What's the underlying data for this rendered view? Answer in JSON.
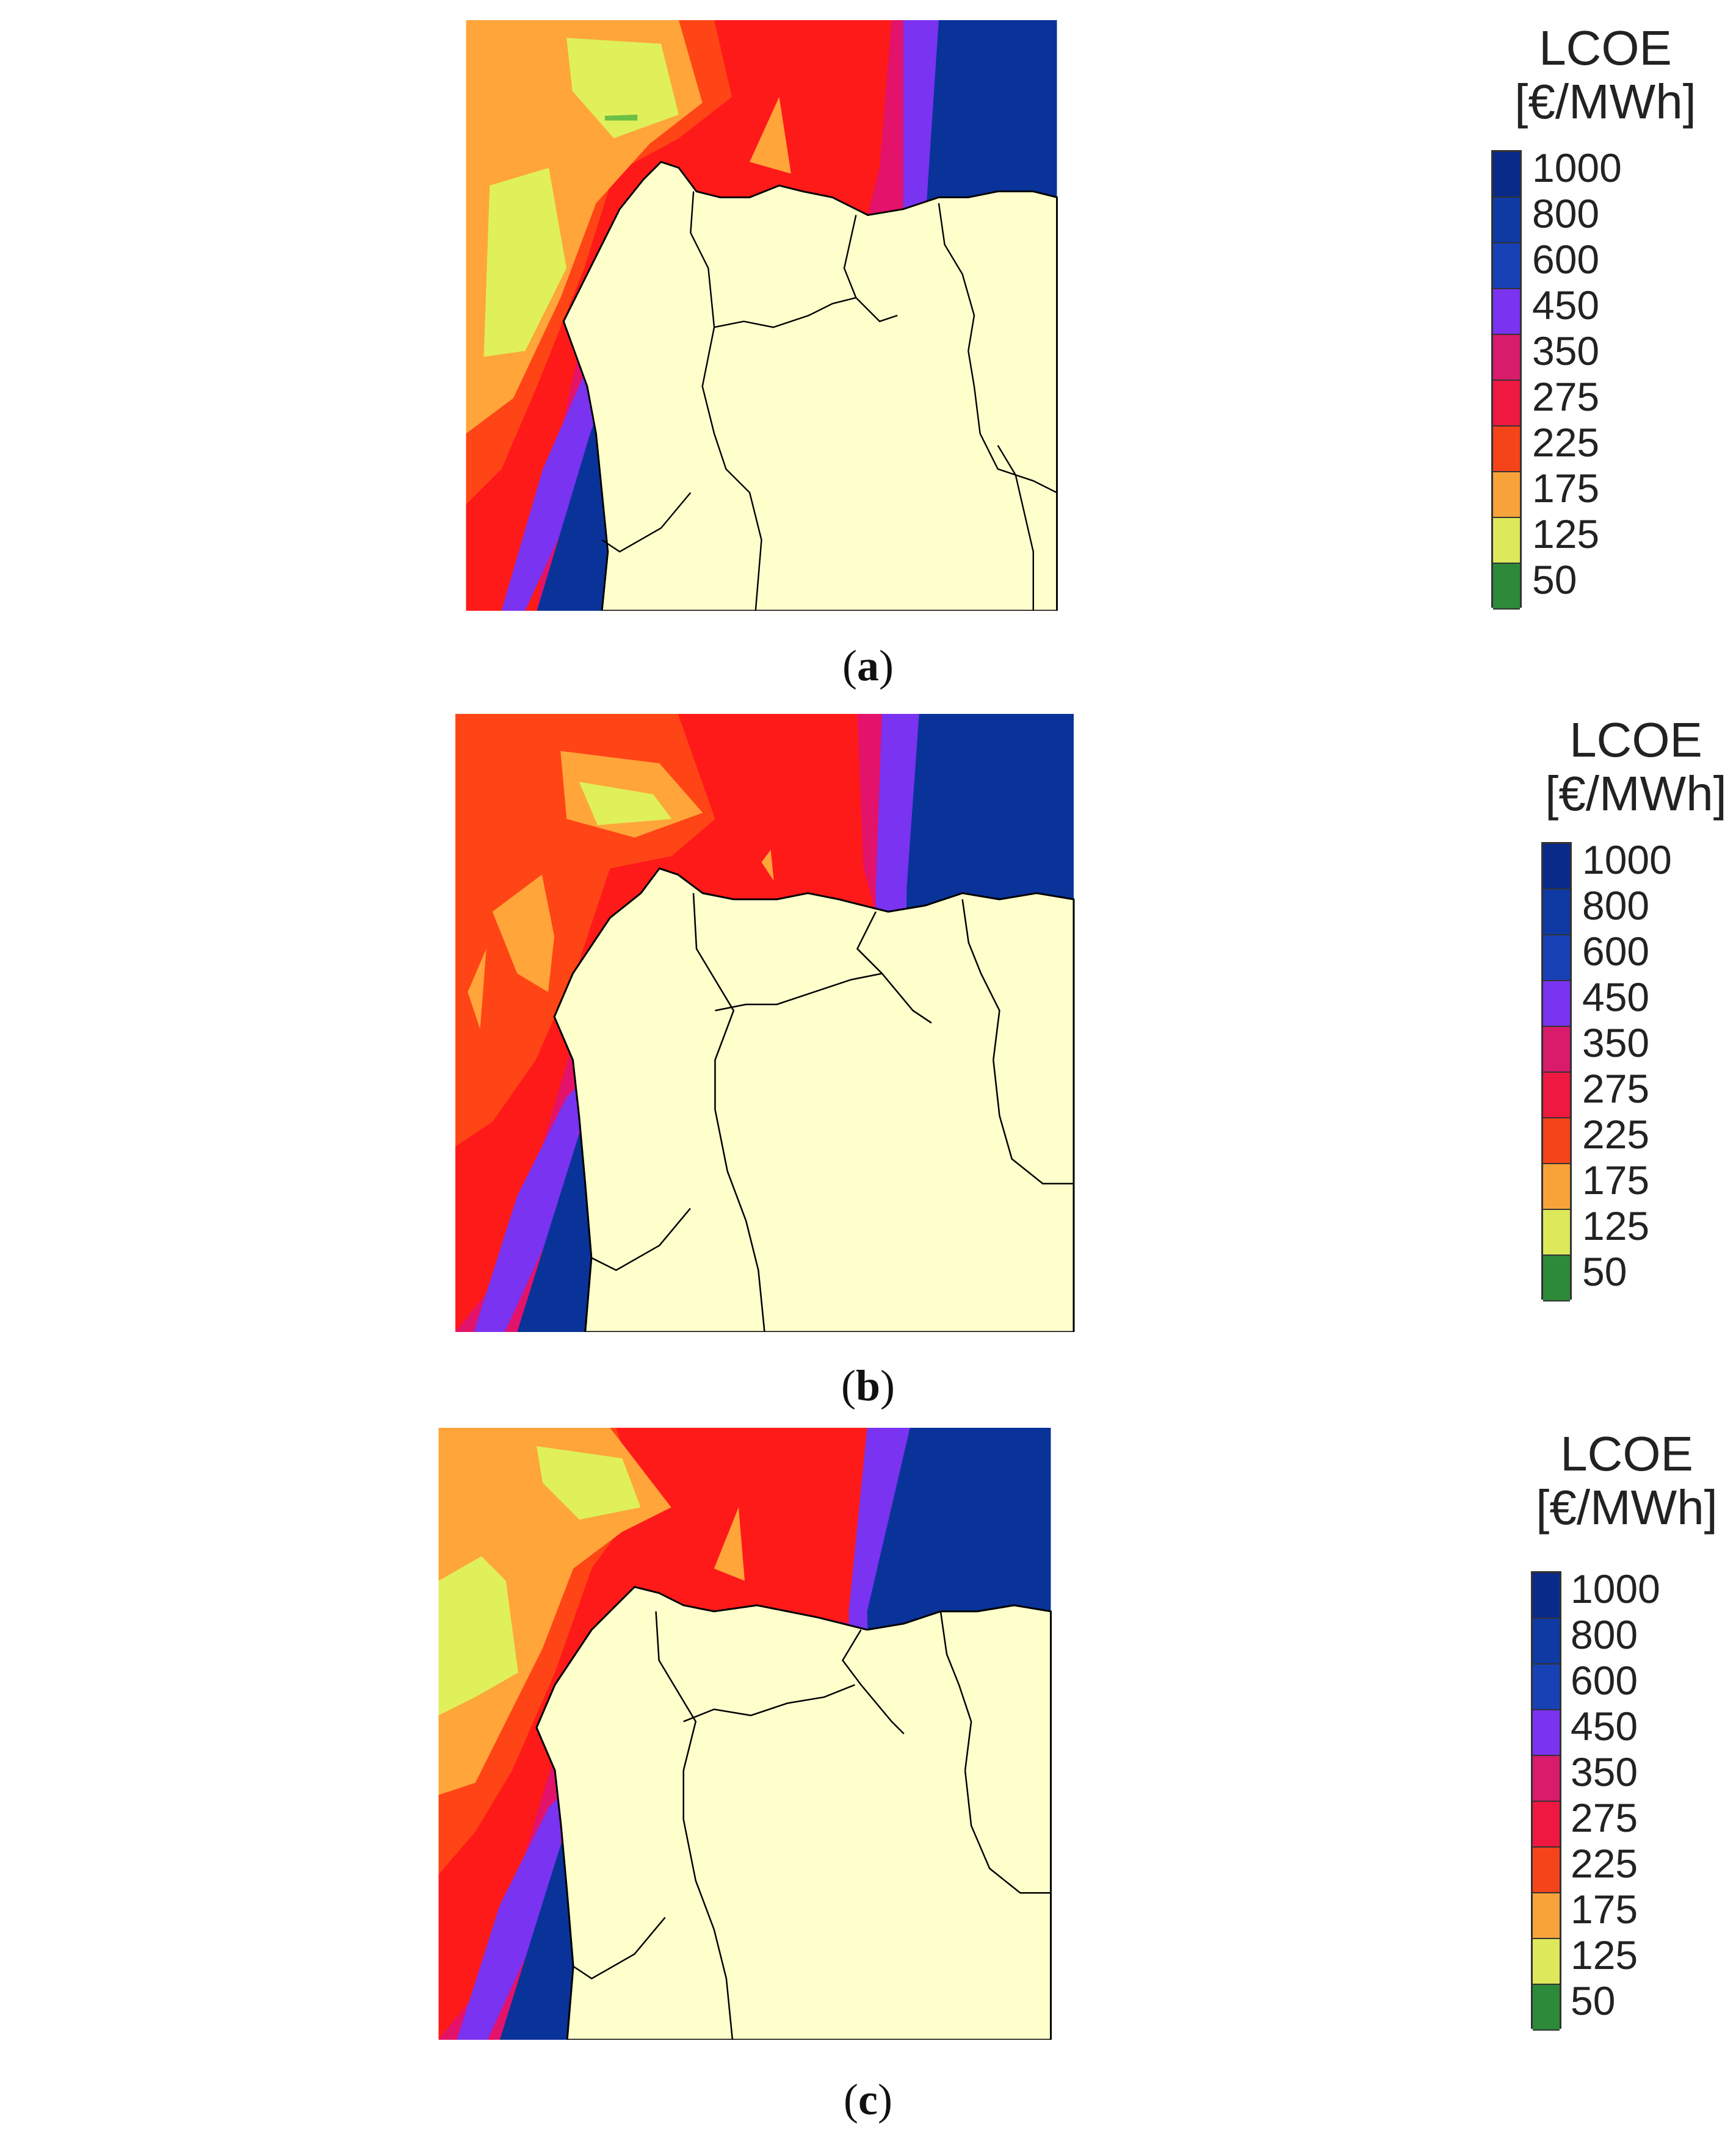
{
  "legend": {
    "title": "LCOE",
    "unit": "[€/MWh]",
    "ticks": [
      "1000",
      "800",
      "600",
      "450",
      "350",
      "275",
      "225",
      "175",
      "125",
      "50"
    ],
    "tick_colors": [
      "#0a2a8a",
      "#0f3aa3",
      "#1741b5",
      "#7a33f0",
      "#d81b6a",
      "#ee1840",
      "#f5431a",
      "#f7a33a",
      "#dde95b",
      "#2d8a3a"
    ]
  },
  "colors": {
    "land": "#ffffcc",
    "very_high": "#0a3399",
    "high": "#7a33f0",
    "mid_high": "#e3126a",
    "mid": "#ff1a1a",
    "mid_low": "#ff4515",
    "low": "#ffa53a",
    "lower": "#dff05a",
    "lowest": "#6cbf45"
  },
  "panels": [
    {
      "label": "a",
      "caption_open": "(",
      "caption_close": ")"
    },
    {
      "label": "b",
      "caption_open": "(",
      "caption_close": ")"
    },
    {
      "label": "c",
      "caption_open": "(",
      "caption_close": ")"
    }
  ]
}
